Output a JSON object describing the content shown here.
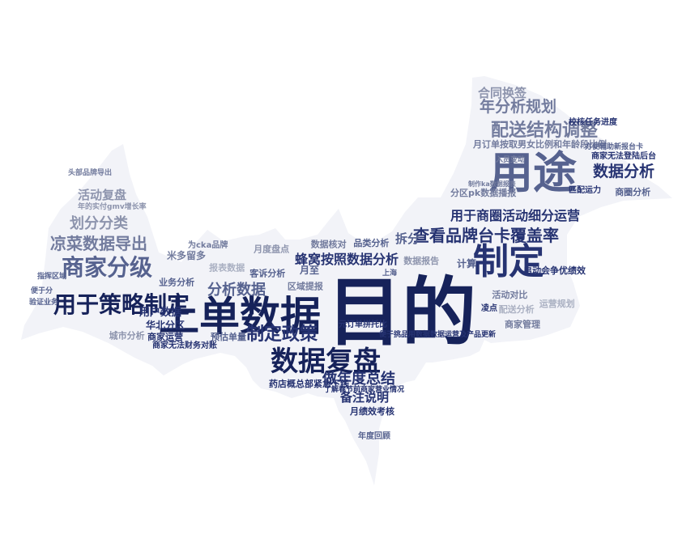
{
  "colors": {
    "background": "#ffffff",
    "silhouette": "#f2f3f8",
    "palette": [
      "#16225a",
      "#263372",
      "#3a4785",
      "#56628f",
      "#737c9e",
      "#8d94ad",
      "#aab0c2"
    ]
  },
  "shape": "bat-silhouette",
  "words": [
    {
      "text": "目的",
      "weight": 1.0
    },
    {
      "text": "上单数据",
      "weight": 0.62
    },
    {
      "text": "用途",
      "weight": 0.6
    },
    {
      "text": "制定",
      "weight": 0.52
    },
    {
      "text": "数据复盘",
      "weight": 0.45
    },
    {
      "text": "用于策略制定",
      "weight": 0.4
    },
    {
      "text": "商家分级",
      "weight": 0.38
    },
    {
      "text": "查看品牌台卡覆盖率",
      "weight": 0.32
    },
    {
      "text": "制定政策",
      "weight": 0.3
    },
    {
      "text": "配送结构调整",
      "weight": 0.3
    },
    {
      "text": "凉菜数据导出",
      "weight": 0.27
    },
    {
      "text": "做年度总结",
      "weight": 0.27
    },
    {
      "text": "年分析规划",
      "weight": 0.25
    },
    {
      "text": "分析数据",
      "weight": 0.25
    },
    {
      "text": "数据分析",
      "weight": 0.25
    },
    {
      "text": "合同换签",
      "weight": 0.23
    },
    {
      "text": "划分分类",
      "weight": 0.23
    },
    {
      "text": "用于商圈活动细分运营",
      "weight": 0.22
    },
    {
      "text": "活动复盘",
      "weight": 0.2
    },
    {
      "text": "蜂窝按照数据分析",
      "weight": 0.2
    },
    {
      "text": "月订单按取男女比例和年龄段比例",
      "weight": 0.14
    },
    {
      "text": "备注说明",
      "weight": 0.17
    },
    {
      "text": "用户数据",
      "weight": 0.15
    },
    {
      "text": "米多留多",
      "weight": 0.13
    },
    {
      "text": "月绩效考核",
      "weight": 0.13
    },
    {
      "text": "华北分区",
      "weight": 0.13
    },
    {
      "text": "商家运营",
      "weight": 0.12
    },
    {
      "text": "预估单量",
      "weight": 0.12
    },
    {
      "text": "拆分",
      "weight": 0.14
    },
    {
      "text": "月至",
      "weight": 0.13
    },
    {
      "text": "计算",
      "weight": 0.12
    },
    {
      "text": "分区pk数据播报",
      "weight": 0.12
    },
    {
      "text": "年度回顾",
      "weight": 0.11
    },
    {
      "text": "药店概总部紧急下线",
      "weight": 0.11
    },
    {
      "text": "便于挑品用数据数据运营及产品更新",
      "weight": 0.1
    },
    {
      "text": "启动会争优绩效",
      "weight": 0.11
    },
    {
      "text": "校核任务进度",
      "weight": 0.11
    },
    {
      "text": "商家无法登陆后台",
      "weight": 0.1
    },
    {
      "text": "方便辅助新报台卡",
      "weight": 0.09
    },
    {
      "text": "商家无法财务对账",
      "weight": 0.1
    },
    {
      "text": "为cka品牌",
      "weight": 0.1
    },
    {
      "text": "元订单拼托比",
      "weight": 0.1
    },
    {
      "text": "匹配运力",
      "weight": 0.1
    },
    {
      "text": "凌点",
      "weight": 0.1
    },
    {
      "text": "了解春节前商家营业情况",
      "weight": 0.09
    },
    {
      "text": "上海",
      "weight": 0.09
    },
    {
      "text": "入员变动",
      "weight": 0.09
    },
    {
      "text": "制作ka数据报表",
      "weight": 0.08
    },
    {
      "text": "头部品牌导出",
      "weight": 0.09
    },
    {
      "text": "年的实付gmv增长率",
      "weight": 0.09
    },
    {
      "text": "指挥区域",
      "weight": 0.08
    },
    {
      "text": "便于分",
      "weight": 0.08
    },
    {
      "text": "验证业务",
      "weight": 0.08
    },
    {
      "text": "商家管理",
      "weight": 0.08
    },
    {
      "text": "数据报告",
      "weight": 0.07
    },
    {
      "text": "报表数据",
      "weight": 0.07
    },
    {
      "text": "业务分析",
      "weight": 0.07
    },
    {
      "text": "区域提报",
      "weight": 0.07
    },
    {
      "text": "月度盘点",
      "weight": 0.07
    },
    {
      "text": "运营规划",
      "weight": 0.07
    },
    {
      "text": "品类分析",
      "weight": 0.07
    },
    {
      "text": "活动对比",
      "weight": 0.07
    },
    {
      "text": "城市分析",
      "weight": 0.07
    },
    {
      "text": "门店整理",
      "weight": 0.07
    },
    {
      "text": "客诉分析",
      "weight": 0.07
    },
    {
      "text": "业绩统计",
      "weight": 0.07
    },
    {
      "text": "增长趋势",
      "weight": 0.07
    },
    {
      "text": "配送分析",
      "weight": 0.07
    },
    {
      "text": "商圈分析",
      "weight": 0.07
    },
    {
      "text": "数据核对",
      "weight": 0.07
    },
    {
      "text": "单量汇总",
      "weight": 0.07
    },
    {
      "text": "策略验证",
      "weight": 0.07
    },
    {
      "text": "分级管理",
      "weight": 0.07
    },
    {
      "text": "日常运营",
      "weight": 0.07
    }
  ]
}
